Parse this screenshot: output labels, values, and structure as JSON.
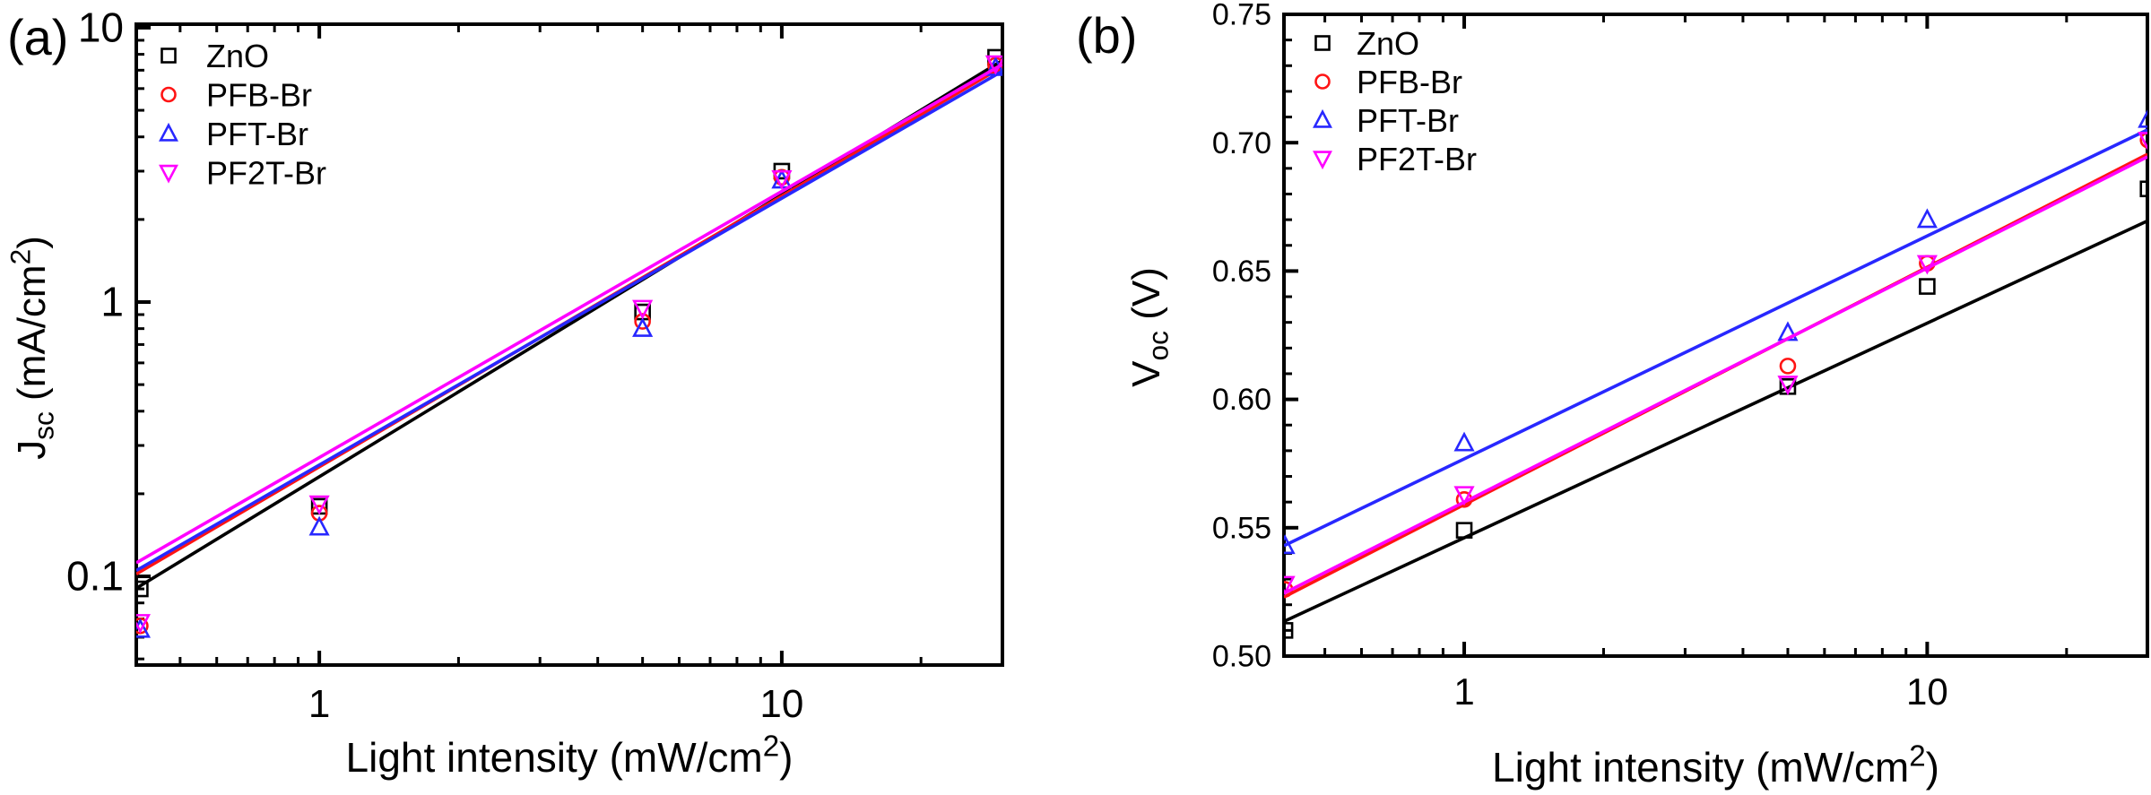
{
  "figure": {
    "background": "#ffffff",
    "panel_letters": [
      "(a)",
      "(b)"
    ]
  },
  "chart_data": [
    {
      "type": "scatter",
      "panel_label": "(a)",
      "title": "",
      "xlabel": "Light intensity (mW/cm2)",
      "ylabel": "Jsc (mA/cm2)",
      "x_axis": {
        "scale": "log",
        "min": 0.402,
        "max": 30,
        "title_parts": [
          {
            "t": "Light intensity (mW/cm"
          },
          {
            "t": "2",
            "pos": "sup"
          },
          {
            "t": ")"
          }
        ],
        "major_ticks": [
          {
            "v": 1,
            "label": "1"
          },
          {
            "v": 10,
            "label": "10"
          }
        ]
      },
      "y_axis": {
        "scale": "log",
        "min": 0.0475,
        "max": 10.3,
        "title_parts": [
          {
            "t": "J"
          },
          {
            "t": "sc",
            "pos": "sub"
          },
          {
            "t": " (mA/cm"
          },
          {
            "t": "2",
            "pos": "sup"
          },
          {
            "t": ")"
          }
        ],
        "major_ticks": [
          {
            "v": 0.1,
            "label": "0.1"
          },
          {
            "v": 1,
            "label": "1"
          },
          {
            "v": 10,
            "label": "10"
          }
        ]
      },
      "legend_position": "top-left-inside",
      "grid": false,
      "series": [
        {
          "name": "ZnO",
          "color": "#000000",
          "marker": "square",
          "x": [
            0.41,
            1,
            5,
            10,
            29
          ],
          "y": [
            0.09,
            0.18,
            0.92,
            3.0,
            7.8
          ],
          "fit_line": {
            "x": [
              0.402,
              30
            ],
            "y": [
              0.0905,
              7.6
            ]
          }
        },
        {
          "name": "PFB-Br",
          "color": "#ff1414",
          "marker": "circle",
          "x": [
            0.41,
            1,
            5,
            10,
            29
          ],
          "y": [
            0.066,
            0.17,
            0.85,
            2.85,
            7.3
          ],
          "fit_line": {
            "x": [
              0.402,
              30
            ],
            "y": [
              0.102,
              7.2
            ]
          }
        },
        {
          "name": "PFT-Br",
          "color": "#2828ff",
          "marker": "triangle-up",
          "x": [
            0.41,
            1,
            5,
            10,
            29
          ],
          "y": [
            0.064,
            0.151,
            0.8,
            2.78,
            7.15
          ],
          "fit_line": {
            "x": [
              0.402,
              30
            ],
            "y": [
              0.105,
              6.95
            ]
          }
        },
        {
          "name": "PF2T-Br",
          "color": "#ff00ff",
          "marker": "triangle-down",
          "x": [
            0.41,
            1,
            5,
            10,
            29
          ],
          "y": [
            0.068,
            0.184,
            0.95,
            2.82,
            7.4
          ],
          "fit_line": {
            "x": [
              0.402,
              30
            ],
            "y": [
              0.112,
              7.35
            ]
          }
        }
      ]
    },
    {
      "type": "scatter",
      "panel_label": "(b)",
      "title": "",
      "xlabel": "Light intensity (mW/cm2)",
      "ylabel": "Voc (V)",
      "x_axis": {
        "scale": "log",
        "min": 0.408,
        "max": 29.9,
        "title_parts": [
          {
            "t": "Light intensity (mW/cm"
          },
          {
            "t": "2",
            "pos": "sup"
          },
          {
            "t": ")"
          }
        ],
        "major_ticks": [
          {
            "v": 1,
            "label": "1"
          },
          {
            "v": 10,
            "label": "10"
          }
        ]
      },
      "y_axis": {
        "scale": "linear",
        "min": 0.5,
        "max": 0.75,
        "minor_step": 0.01,
        "title_parts": [
          {
            "t": "V"
          },
          {
            "t": "oc",
            "pos": "sub"
          },
          {
            "t": " (V)"
          }
        ],
        "major_ticks": [
          {
            "v": 0.5,
            "label": "0.50"
          },
          {
            "v": 0.55,
            "label": "0.55"
          },
          {
            "v": 0.6,
            "label": "0.60"
          },
          {
            "v": 0.65,
            "label": "0.65"
          },
          {
            "v": 0.7,
            "label": "0.70"
          },
          {
            "v": 0.75,
            "label": "0.75"
          }
        ]
      },
      "legend_position": "top-left-inside",
      "grid": false,
      "series": [
        {
          "name": "ZnO",
          "color": "#000000",
          "marker": "square",
          "x": [
            0.41,
            1,
            5,
            10,
            30
          ],
          "y": [
            0.51,
            0.549,
            0.605,
            0.644,
            0.682
          ],
          "fit_line": {
            "x": [
              0.408,
              29.9
            ],
            "y": [
              0.5135,
              0.6695
            ]
          }
        },
        {
          "name": "PFB-Br",
          "color": "#ff1414",
          "marker": "circle",
          "x": [
            0.41,
            1,
            5,
            10,
            30
          ],
          "y": [
            0.526,
            0.561,
            0.613,
            0.653,
            0.701
          ],
          "fit_line": {
            "x": [
              0.408,
              29.9
            ],
            "y": [
              0.523,
              0.6955
            ]
          }
        },
        {
          "name": "PFT-Br",
          "color": "#2828ff",
          "marker": "triangle-up",
          "x": [
            0.41,
            1,
            5,
            10,
            30
          ],
          "y": [
            0.543,
            0.583,
            0.626,
            0.67,
            0.709
          ],
          "fit_line": {
            "x": [
              0.408,
              29.9
            ],
            "y": [
              0.543,
              0.705
            ]
          }
        },
        {
          "name": "PF2T-Br",
          "color": "#ff00ff",
          "marker": "triangle-down",
          "x": [
            0.41,
            1,
            5,
            10,
            30
          ],
          "y": [
            0.528,
            0.563,
            0.606,
            0.653,
            0.701
          ],
          "fit_line": {
            "x": [
              0.408,
              29.9
            ],
            "y": [
              0.5245,
              0.6945
            ]
          }
        }
      ]
    }
  ]
}
